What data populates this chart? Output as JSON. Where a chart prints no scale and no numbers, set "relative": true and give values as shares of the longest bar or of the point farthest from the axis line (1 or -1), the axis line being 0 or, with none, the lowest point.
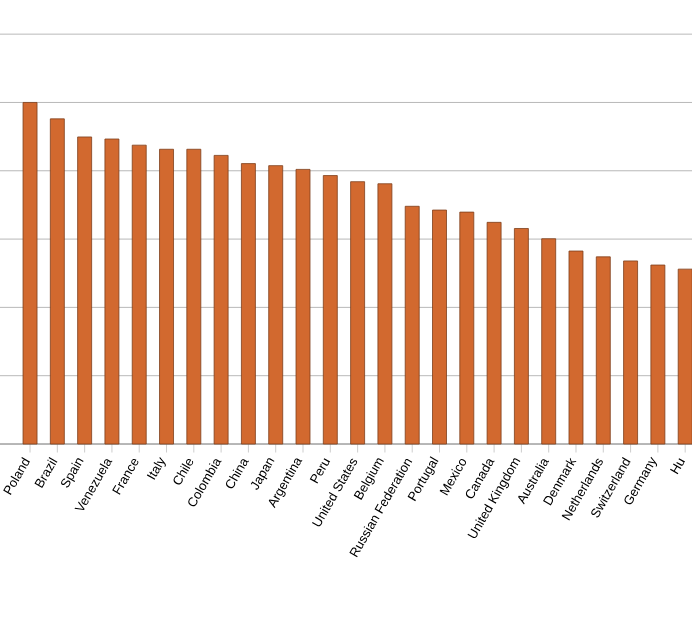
{
  "chart_data": {
    "type": "bar",
    "relative": true,
    "grid": "y",
    "color": "#d2692f",
    "categories": [
      "Poland",
      "Brazil",
      "Spain",
      "Venezuela",
      "France",
      "Italy",
      "Chile",
      "Colombia",
      "China",
      "Japan",
      "Argentina",
      "Peru",
      "United States",
      "Belgium",
      "Russian Federation",
      "Portugal",
      "Mexico",
      "Canada",
      "United Kingdom",
      "Australia",
      "Denmark",
      "Netherlands",
      "Switzerland",
      "Germany",
      "Hu"
    ],
    "values": [
      1,
      0.952,
      0.899,
      0.893,
      0.875,
      0.863,
      0.863,
      0.845,
      0.821,
      0.815,
      0.804,
      0.786,
      0.768,
      0.762,
      0.696,
      0.685,
      0.679,
      0.649,
      0.631,
      0.601,
      0.565,
      0.548,
      0.536,
      0.524,
      0.512
    ]
  }
}
